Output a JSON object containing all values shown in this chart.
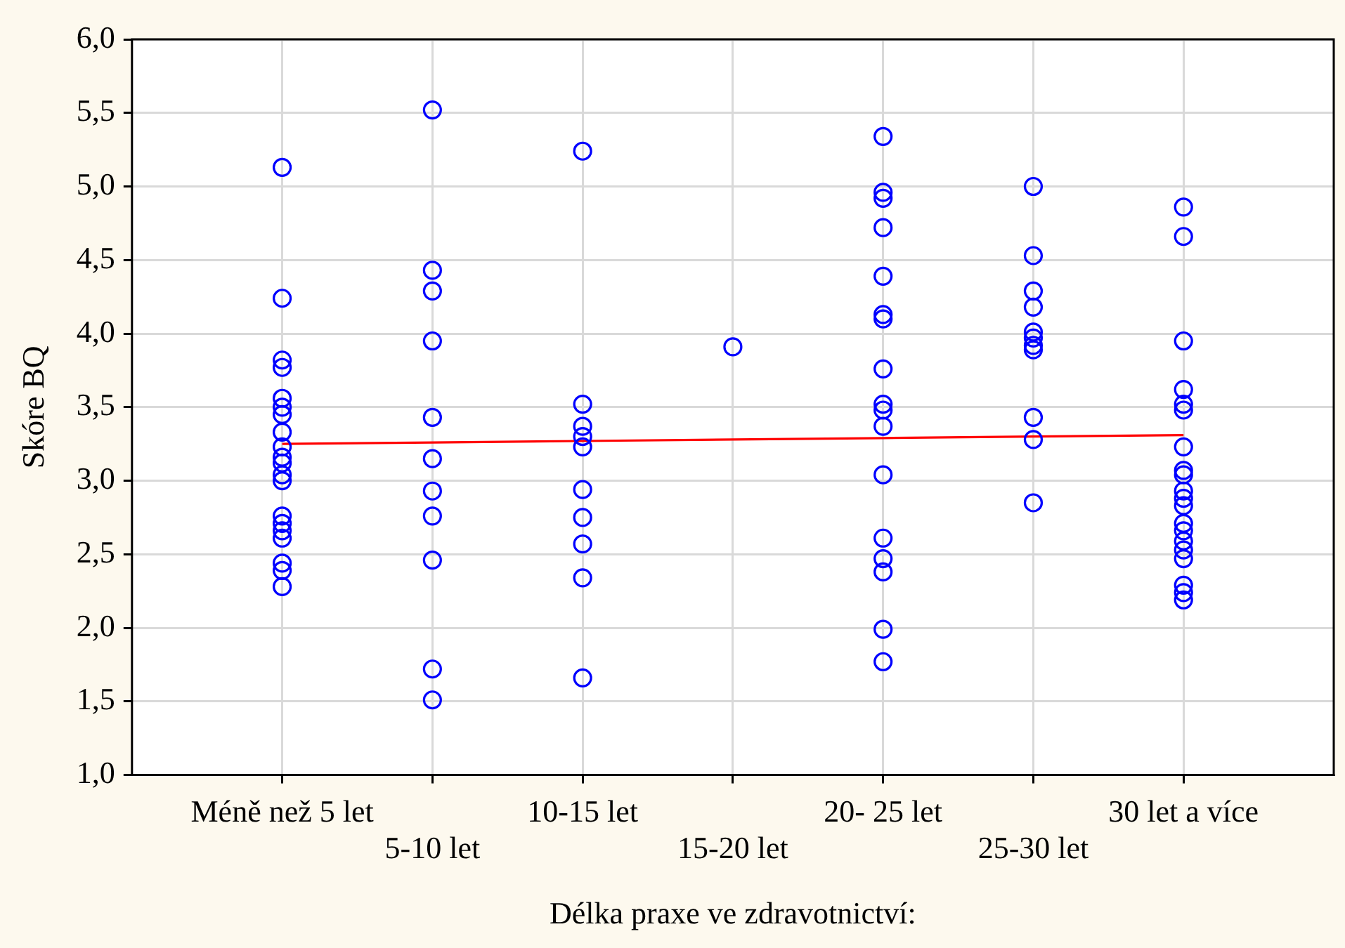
{
  "chart_data": {
    "type": "scatter",
    "xlabel": "Délka praxe ve zdravotnictví:",
    "ylabel": "Skóre BQ",
    "categories": [
      "Méně než 5 let",
      "5-10 let",
      "10-15 let",
      "15-20 let",
      "20- 25 let",
      "25-30 let",
      "30 let a více"
    ],
    "ylim": [
      1,
      6
    ],
    "yticks": [
      {
        "value": 1,
        "label": "1,0"
      },
      {
        "value": 1.5,
        "label": "1,5"
      },
      {
        "value": 2,
        "label": "2,0"
      },
      {
        "value": 2.5,
        "label": "2,5"
      },
      {
        "value": 3,
        "label": "3,0"
      },
      {
        "value": 3.5,
        "label": "3,5"
      },
      {
        "value": 4,
        "label": "4,0"
      },
      {
        "value": 4.5,
        "label": "4,5"
      },
      {
        "value": 5,
        "label": "5,0"
      },
      {
        "value": 5.5,
        "label": "5,5"
      },
      {
        "value": 6,
        "label": "6,0"
      }
    ],
    "grid": true,
    "legend": false,
    "marker": "circle",
    "series": [
      {
        "color": "#0000ff",
        "x": [
          "Méně než 5 let",
          "Méně než 5 let",
          "Méně než 5 let",
          "Méně než 5 let",
          "Méně než 5 let",
          "Méně než 5 let",
          "Méně než 5 let",
          "Méně než 5 let",
          "Méně než 5 let",
          "Méně než 5 let",
          "Méně než 5 let",
          "Méně než 5 let",
          "Méně než 5 let",
          "Méně než 5 let",
          "Méně než 5 let",
          "Méně než 5 let",
          "Méně než 5 let",
          "Méně než 5 let",
          "Méně než 5 let",
          "Méně než 5 let"
        ],
        "values": [
          5.13,
          4.24,
          3.82,
          3.77,
          3.56,
          3.5,
          3.45,
          3.33,
          3.23,
          3.16,
          3.12,
          3.04,
          3.0,
          2.76,
          2.71,
          2.66,
          2.61,
          2.44,
          2.39,
          2.28
        ]
      },
      {
        "color": "#0000ff",
        "x": [
          "5-10 let",
          "5-10 let",
          "5-10 let",
          "5-10 let",
          "5-10 let",
          "5-10 let",
          "5-10 let",
          "5-10 let",
          "5-10 let",
          "5-10 let",
          "5-10 let"
        ],
        "values": [
          5.52,
          4.43,
          4.29,
          3.95,
          3.43,
          3.15,
          2.93,
          2.76,
          2.46,
          1.72,
          1.51
        ]
      },
      {
        "color": "#0000ff",
        "x": [
          "10-15 let",
          "10-15 let",
          "10-15 let",
          "10-15 let",
          "10-15 let",
          "10-15 let",
          "10-15 let",
          "10-15 let",
          "10-15 let",
          "10-15 let"
        ],
        "values": [
          5.24,
          3.52,
          3.37,
          3.3,
          3.23,
          2.94,
          2.75,
          2.57,
          2.34,
          1.66
        ]
      },
      {
        "color": "#0000ff",
        "x": [
          "15-20 let"
        ],
        "values": [
          3.91
        ]
      },
      {
        "color": "#0000ff",
        "x": [
          "20- 25 let",
          "20- 25 let",
          "20- 25 let",
          "20- 25 let",
          "20- 25 let",
          "20- 25 let",
          "20- 25 let",
          "20- 25 let",
          "20- 25 let",
          "20- 25 let",
          "20- 25 let",
          "20- 25 let",
          "20- 25 let",
          "20- 25 let",
          "20- 25 let",
          "20- 25 let",
          "20- 25 let"
        ],
        "values": [
          5.34,
          4.96,
          4.92,
          4.72,
          4.39,
          4.13,
          4.1,
          3.76,
          3.52,
          3.48,
          3.37,
          3.04,
          2.61,
          2.47,
          2.38,
          1.99,
          1.77
        ]
      },
      {
        "color": "#0000ff",
        "x": [
          "25-30 let",
          "25-30 let",
          "25-30 let",
          "25-30 let",
          "25-30 let",
          "25-30 let",
          "25-30 let",
          "25-30 let",
          "25-30 let",
          "25-30 let",
          "25-30 let"
        ],
        "values": [
          5.0,
          4.53,
          4.29,
          4.18,
          4.01,
          3.97,
          3.92,
          3.89,
          3.43,
          3.28,
          2.85
        ]
      },
      {
        "color": "#0000ff",
        "x": [
          "30 let a více",
          "30 let a více",
          "30 let a více",
          "30 let a více",
          "30 let a více",
          "30 let a více",
          "30 let a více",
          "30 let a více",
          "30 let a více",
          "30 let a více",
          "30 let a více",
          "30 let a více",
          "30 let a více",
          "30 let a více",
          "30 let a více",
          "30 let a více",
          "30 let a více",
          "30 let a více",
          "30 let a více",
          "30 let a více"
        ],
        "values": [
          4.86,
          4.66,
          3.95,
          3.62,
          3.52,
          3.48,
          3.23,
          3.07,
          3.04,
          2.93,
          2.88,
          2.83,
          2.71,
          2.66,
          2.59,
          2.53,
          2.47,
          2.29,
          2.24,
          2.19
        ]
      },
      {
        "type": "line",
        "color": "#ff0000",
        "marker": "none",
        "values": [
          3.25,
          3.26,
          3.27,
          3.28,
          3.29,
          3.3,
          3.31
        ]
      }
    ]
  }
}
